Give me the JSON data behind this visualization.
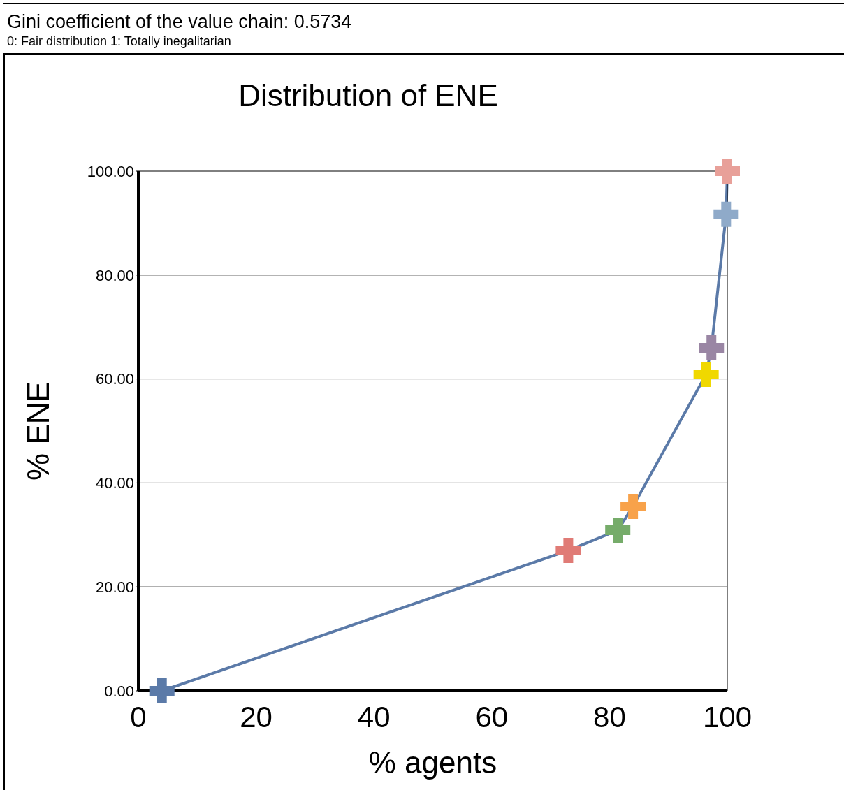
{
  "chart_data": {
    "type": "line",
    "title": "Distribution of ENE",
    "xlabel": "% agents",
    "ylabel": "% ENE",
    "annotations": [
      "Gini coefficient of the value chain: 0.5734",
      "0: Fair distribution 1: Totally inegalitarian"
    ],
    "x": [
      4,
      73,
      81.4,
      84,
      96.4,
      97.3,
      99.8,
      100
    ],
    "series": [
      {
        "color": "#5b7aa8",
        "values": [
          0,
          27,
          30.9,
          35.5,
          60.9,
          66,
          91.7,
          100
        ],
        "colors": [
          "#5b7aa8",
          "#e07b76",
          "#76ac6a",
          "#f8a24a",
          "#f0d800",
          "#9a86a4",
          "#8faac9",
          "#e8a099"
        ]
      }
    ],
    "xlim": [
      0,
      100
    ],
    "xticks": [
      0,
      20,
      40,
      60,
      80,
      100
    ],
    "ylim": [
      0,
      100
    ],
    "yticks": [
      {
        "value": 0,
        "label": "0.00"
      },
      {
        "value": 20,
        "label": "20.00"
      },
      {
        "value": 40,
        "label": "40.00"
      },
      {
        "value": 60,
        "label": "60.00"
      },
      {
        "value": 80,
        "label": "80.00"
      },
      {
        "value": 100,
        "label": "100.00"
      }
    ],
    "grid": "y",
    "marker": "cross",
    "line_style": "solid"
  }
}
